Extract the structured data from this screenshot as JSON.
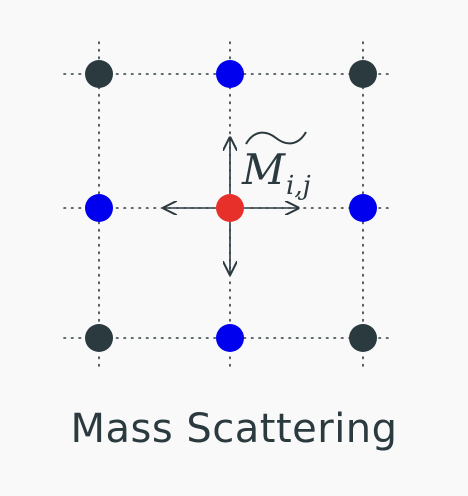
{
  "caption": "Mass Scattering",
  "label": {
    "symbol": "M",
    "subscript": "i,j",
    "accent": "~"
  },
  "colors": {
    "center": "#e8302a",
    "neighbor": "#0000ee",
    "corner": "#2b3a3f",
    "grid": "#2b3a3f",
    "arrow": "#2b3a3f"
  },
  "grid": {
    "rows": 3,
    "cols": 3,
    "center_node": [
      1,
      1
    ],
    "neighbor_nodes": [
      [
        0,
        1
      ],
      [
        1,
        0
      ],
      [
        1,
        2
      ],
      [
        2,
        1
      ]
    ],
    "corner_nodes": [
      [
        0,
        0
      ],
      [
        0,
        2
      ],
      [
        2,
        0
      ],
      [
        2,
        2
      ]
    ]
  },
  "arrows": [
    "up",
    "down",
    "left",
    "right"
  ]
}
